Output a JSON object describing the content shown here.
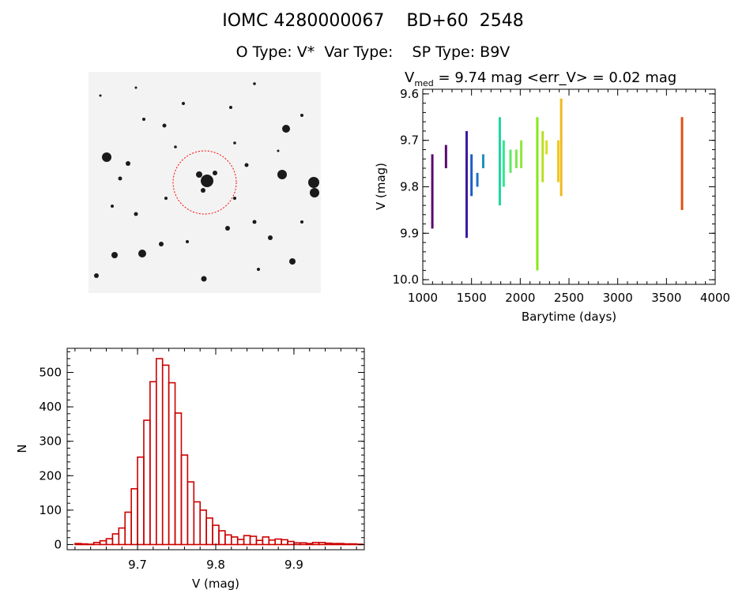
{
  "header": {
    "title_line1": "IOMC 4280000067    BD+60  2548",
    "title_line2": "O Type: V*  Var Type:    SP Type: B9V"
  },
  "colors": {
    "histogram": "#cc0000",
    "axes": "#000000",
    "marker": "#ff0000"
  },
  "lightcurve_title": {
    "prefix": "V",
    "subscript": "med",
    "suffix": " = 9.74 mag <err_V> = 0.02 mag"
  },
  "chart_data": [
    {
      "type": "scatter",
      "name": "light curve",
      "xlabel": "Barytime (days)",
      "ylabel": "V (mag)",
      "xlim": [
        1000,
        4000
      ],
      "ylim": [
        10.01,
        9.59
      ],
      "xticks": [
        1000,
        1500,
        2000,
        2500,
        3000,
        3500,
        4000
      ],
      "yticks": [
        9.6,
        9.7,
        9.8,
        9.9,
        10.0
      ],
      "ytick_labels": [
        "9.6",
        "9.7",
        "9.8",
        "9.9",
        "10.0"
      ],
      "segments": [
        {
          "x": 1098,
          "ymin": 9.73,
          "ymax": 9.89,
          "color": "#5a0a6e"
        },
        {
          "x": 1238,
          "ymin": 9.71,
          "ymax": 9.76,
          "color": "#5a0a6e"
        },
        {
          "x": 1450,
          "ymin": 9.68,
          "ymax": 9.91,
          "color": "#3b1aa0"
        },
        {
          "x": 1500,
          "ymin": 9.73,
          "ymax": 9.82,
          "color": "#1f5bc8"
        },
        {
          "x": 1560,
          "ymin": 9.77,
          "ymax": 9.8,
          "color": "#1f73c8"
        },
        {
          "x": 1620,
          "ymin": 9.73,
          "ymax": 9.76,
          "color": "#1f8fc0"
        },
        {
          "x": 1790,
          "ymin": 9.65,
          "ymax": 9.84,
          "color": "#20d4a0"
        },
        {
          "x": 1830,
          "ymin": 9.7,
          "ymax": 9.8,
          "color": "#30e890"
        },
        {
          "x": 1900,
          "ymin": 9.72,
          "ymax": 9.77,
          "color": "#5ee86a"
        },
        {
          "x": 1960,
          "ymin": 9.72,
          "ymax": 9.76,
          "color": "#7ee84a"
        },
        {
          "x": 2010,
          "ymin": 9.7,
          "ymax": 9.76,
          "color": "#8ee840"
        },
        {
          "x": 2175,
          "ymin": 9.65,
          "ymax": 9.98,
          "color": "#86e81a"
        },
        {
          "x": 2230,
          "ymin": 9.68,
          "ymax": 9.79,
          "color": "#b8e020"
        },
        {
          "x": 2270,
          "ymin": 9.7,
          "ymax": 9.73,
          "color": "#d8e020"
        },
        {
          "x": 2390,
          "ymin": 9.7,
          "ymax": 9.79,
          "color": "#f0c820"
        },
        {
          "x": 2420,
          "ymin": 9.61,
          "ymax": 9.82,
          "color": "#f0b820"
        },
        {
          "x": 3660,
          "ymin": 9.65,
          "ymax": 9.85,
          "color": "#e05010"
        }
      ]
    },
    {
      "type": "bar",
      "name": "histogram",
      "xlabel": "V (mag)",
      "ylabel": "N",
      "xlim": [
        9.61,
        9.99
      ],
      "ylim": [
        -15,
        570
      ],
      "xticks": [
        9.7,
        9.8,
        9.9
      ],
      "yticks": [
        0,
        100,
        200,
        300,
        400,
        500
      ],
      "bin_start": 9.62,
      "bin_width": 0.008,
      "counts": [
        3,
        2,
        1,
        6,
        11,
        17,
        31,
        48,
        94,
        162,
        254,
        361,
        473,
        540,
        521,
        470,
        382,
        260,
        182,
        124,
        100,
        77,
        56,
        40,
        28,
        22,
        15,
        26,
        24,
        12,
        22,
        13,
        16,
        14,
        9,
        5,
        5,
        3,
        6,
        6,
        4,
        3,
        3,
        2,
        2,
        1
      ]
    }
  ]
}
